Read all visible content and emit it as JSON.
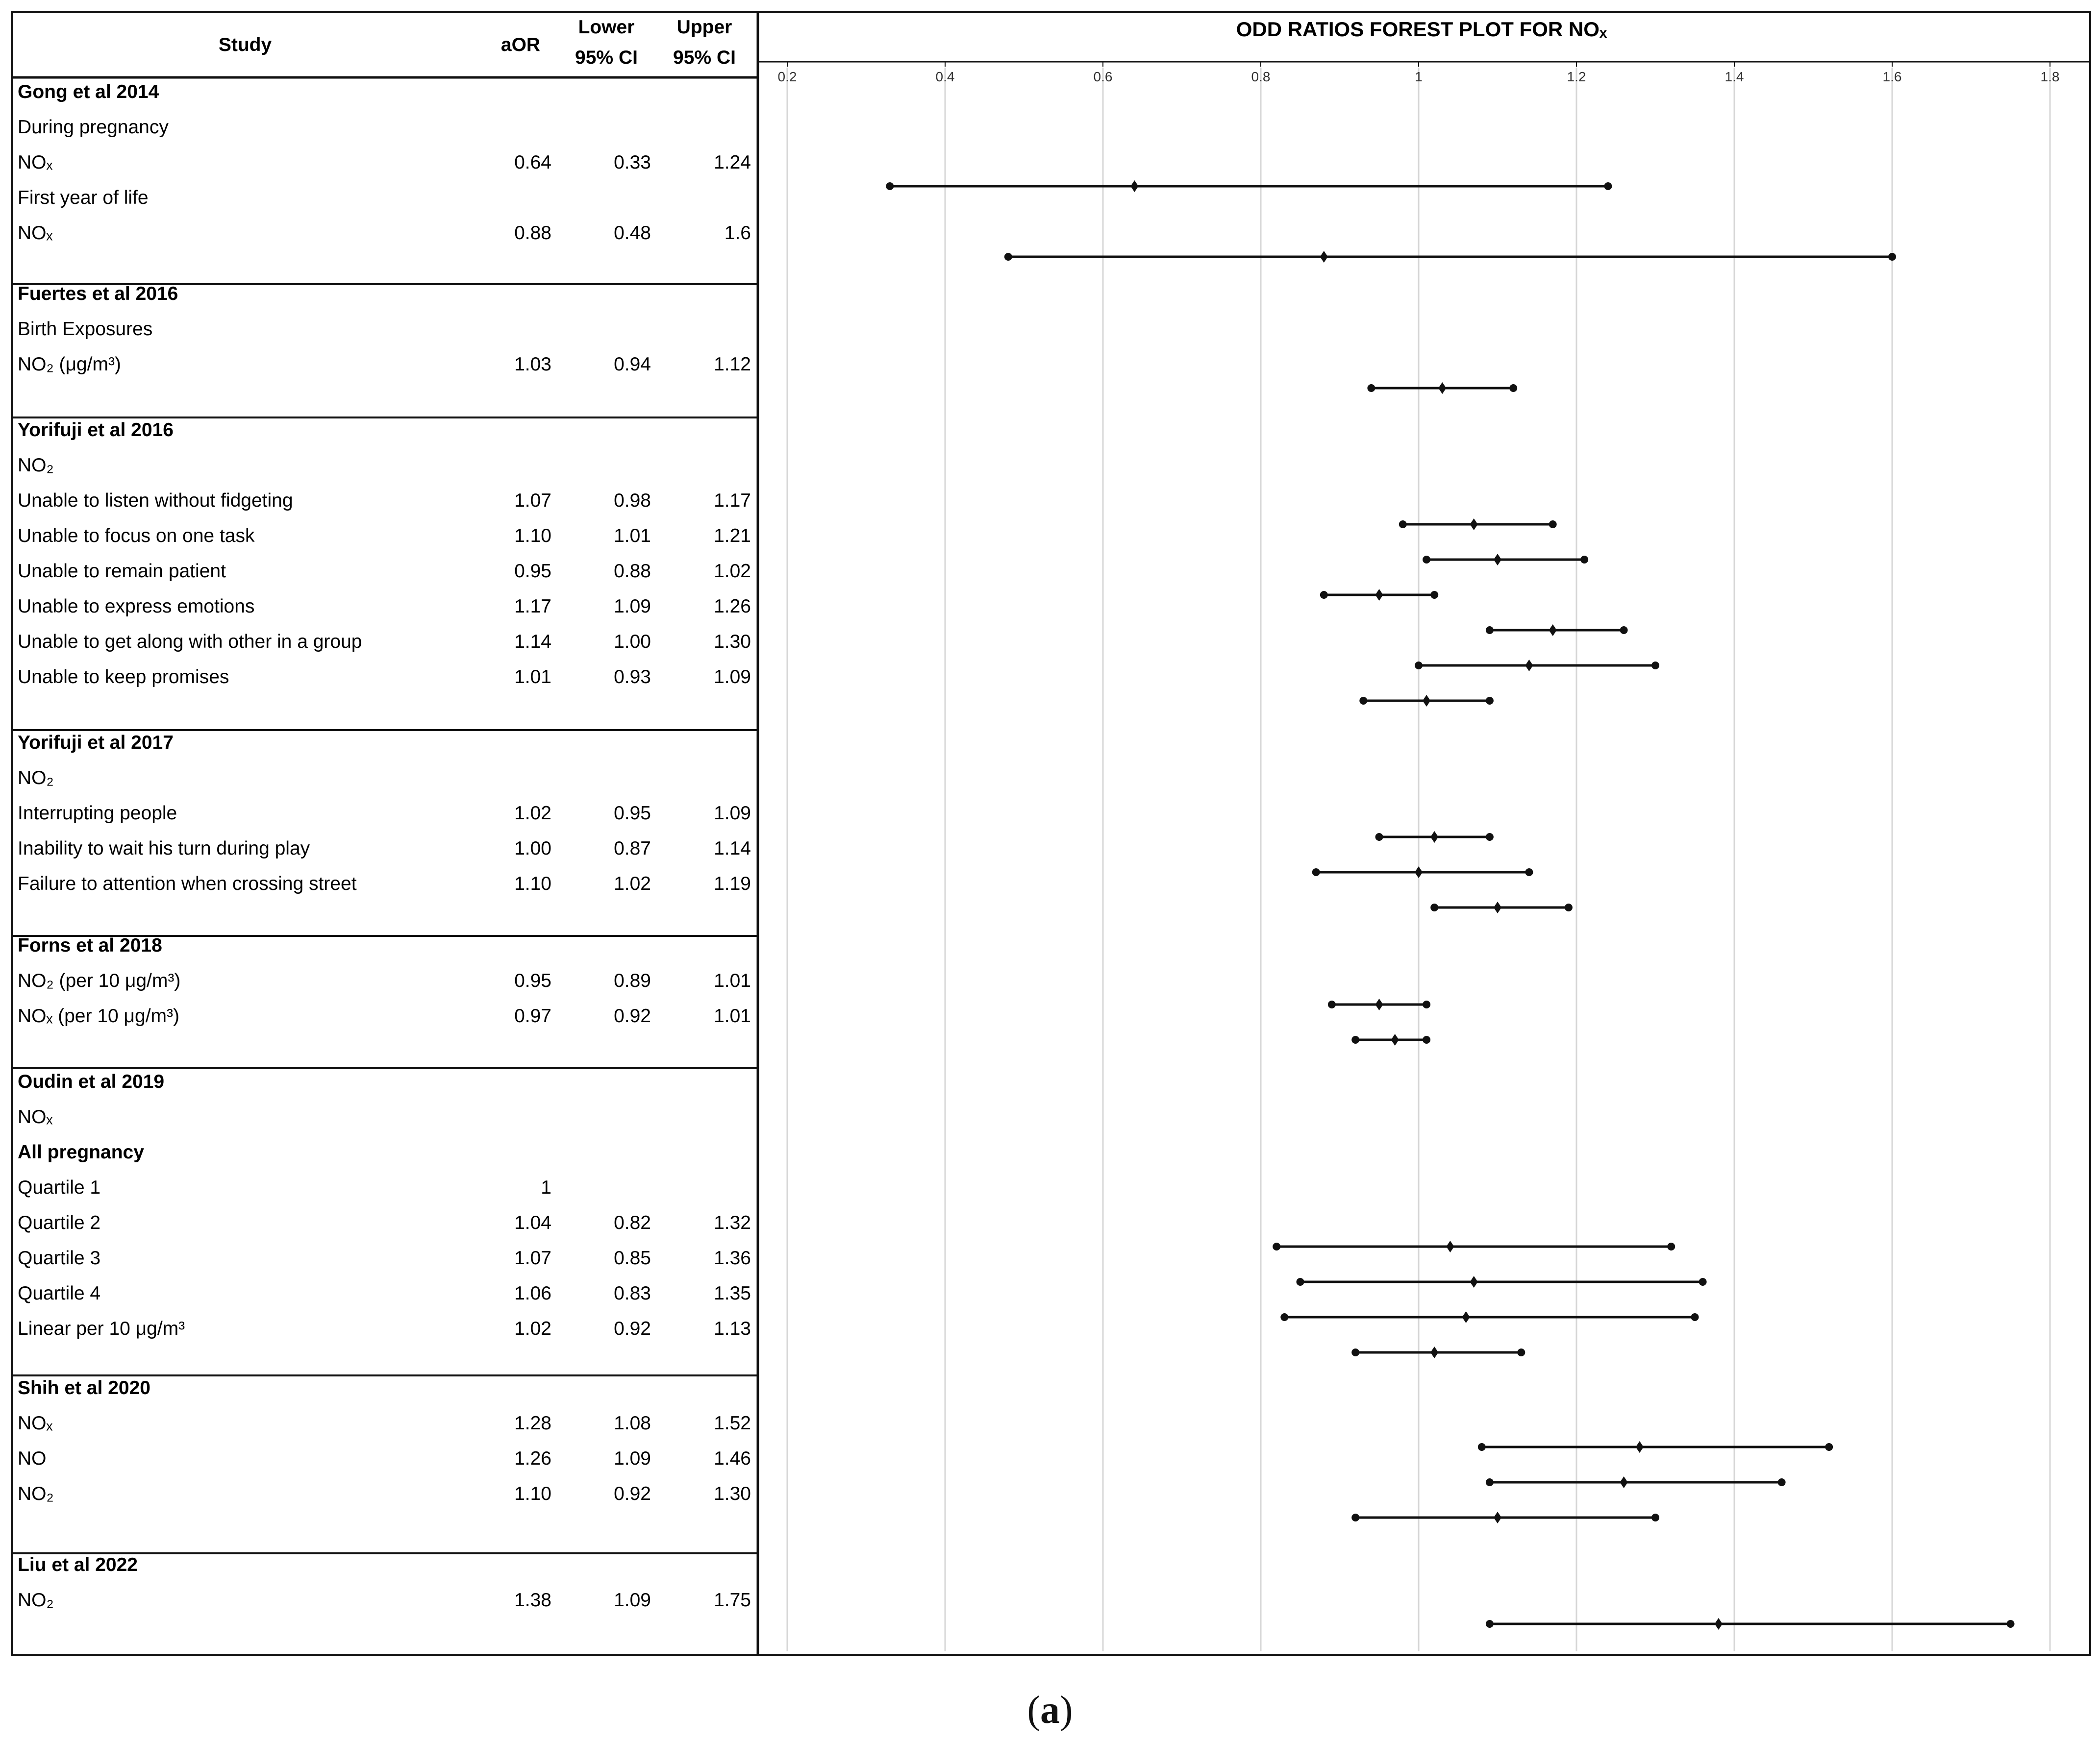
{
  "table": {
    "headers": {
      "study": "Study",
      "aor": "aOR",
      "lower": [
        "Lower",
        "95% CI"
      ],
      "upper": [
        "Upper",
        "95% CI"
      ]
    },
    "groups": [
      {
        "title": "Gong et al 2014",
        "rows": [
          {
            "label": "During pregnancy"
          },
          {
            "label": "NOₓ",
            "aor": "0.64",
            "lower": "0.33",
            "upper": "1.24"
          },
          {
            "label": "First year of life"
          },
          {
            "label": "NOₓ",
            "aor": "0.88",
            "lower": "0.48",
            "upper": "1.6"
          }
        ]
      },
      {
        "title": "Fuertes  et al 2016",
        "rows": [
          {
            "label": "Birth Exposures"
          },
          {
            "label": "NO₂ (μg/m³)",
            "aor": "1.03",
            "lower": "0.94",
            "upper": "1.12"
          }
        ]
      },
      {
        "title": "Yorifuji et al 2016",
        "rows": [
          {
            "label": "NO₂"
          },
          {
            "label": "Unable to listen without fidgeting",
            "aor": "1.07",
            "lower": "0.98",
            "upper": "1.17"
          },
          {
            "label": "Unable to focus on one task",
            "aor": "1.10",
            "lower": "1.01",
            "upper": "1.21"
          },
          {
            "label": "Unable to remain patient",
            "aor": "0.95",
            "lower": "0.88",
            "upper": "1.02"
          },
          {
            "label": "Unable to express emotions",
            "aor": "1.17",
            "lower": "1.09",
            "upper": "1.26"
          },
          {
            "label": "Unable to get along with other in a group",
            "aor": "1.14",
            "lower": "1.00",
            "upper": "1.30"
          },
          {
            "label": "Unable to keep promises",
            "aor": "1.01",
            "lower": "0.93",
            "upper": "1.09"
          }
        ]
      },
      {
        "title": "Yorifuji et al 2017",
        "rows": [
          {
            "label": "NO₂"
          },
          {
            "label": "Interrupting people",
            "aor": "1.02",
            "lower": "0.95",
            "upper": "1.09"
          },
          {
            "label": "Inability to wait his turn during play",
            "aor": "1.00",
            "lower": "0.87",
            "upper": "1.14"
          },
          {
            "label": "Failure to attention when crossing street",
            "aor": "1.10",
            "lower": "1.02",
            "upper": "1.19"
          }
        ]
      },
      {
        "title": "Forns et al 2018",
        "rows": [
          {
            "label": "NO₂ (per 10 μg/m³)",
            "aor": "0.95",
            "lower": "0.89",
            "upper": "1.01"
          },
          {
            "label": "NOₓ (per 10 μg/m³)",
            "aor": "0.97",
            "lower": "0.92",
            "upper": "1.01"
          }
        ]
      },
      {
        "title": "Oudin  et al 2019",
        "rows": [
          {
            "label": "NOₓ"
          },
          {
            "label": "All pregnancy",
            "bold": true
          },
          {
            "label": "Quartile 1",
            "aor": "1"
          },
          {
            "label": "Quartile 2",
            "aor": "1.04",
            "lower": "0.82",
            "upper": "1.32"
          },
          {
            "label": "Quartile 3",
            "aor": "1.07",
            "lower": "0.85",
            "upper": "1.36"
          },
          {
            "label": "Quartile 4",
            "aor": "1.06",
            "lower": "0.83",
            "upper": "1.35"
          },
          {
            "label": "Linear per 10 μg/m³",
            "aor": "1.02",
            "lower": "0.92",
            "upper": "1.13"
          }
        ]
      },
      {
        "title": "Shih et al 2020",
        "rows": [
          {
            "label": "NOₓ",
            "aor": "1.28",
            "lower": "1.08",
            "upper": "1.52"
          },
          {
            "label": "NO",
            "aor": "1.26",
            "lower": "1.09",
            "upper": "1.46"
          },
          {
            "label": "NO₂",
            "aor": "1.10",
            "lower": "0.92",
            "upper": "1.30"
          }
        ]
      },
      {
        "title": "Liu et al 2022",
        "rows": [
          {
            "label": "NO₂",
            "aor": "1.38",
            "lower": "1.09",
            "upper": "1.75"
          }
        ]
      }
    ]
  },
  "chart_data": {
    "type": "forest",
    "title": "ODD RATIOS FOREST PLOT FOR NOₓ",
    "xlim": [
      0.2,
      1.8
    ],
    "xticks": [
      "0.2",
      "0.4",
      "0.6",
      "0.8",
      "1",
      "1.2",
      "1.4",
      "1.6",
      "1.8"
    ],
    "grid": true,
    "estimates": [
      {
        "aor": 0.64,
        "lower": 0.33,
        "upper": 1.24
      },
      {
        "aor": 0.88,
        "lower": 0.48,
        "upper": 1.6
      },
      {
        "aor": 1.03,
        "lower": 0.94,
        "upper": 1.12
      },
      {
        "aor": 1.07,
        "lower": 0.98,
        "upper": 1.17
      },
      {
        "aor": 1.1,
        "lower": 1.01,
        "upper": 1.21
      },
      {
        "aor": 0.95,
        "lower": 0.88,
        "upper": 1.02
      },
      {
        "aor": 1.17,
        "lower": 1.09,
        "upper": 1.26
      },
      {
        "aor": 1.14,
        "lower": 1.0,
        "upper": 1.3
      },
      {
        "aor": 1.01,
        "lower": 0.93,
        "upper": 1.09
      },
      {
        "aor": 1.02,
        "lower": 0.95,
        "upper": 1.09
      },
      {
        "aor": 1.0,
        "lower": 0.87,
        "upper": 1.14
      },
      {
        "aor": 1.1,
        "lower": 1.02,
        "upper": 1.19
      },
      {
        "aor": 0.95,
        "lower": 0.89,
        "upper": 1.01
      },
      {
        "aor": 0.97,
        "lower": 0.92,
        "upper": 1.01
      },
      {
        "aor": 1.04,
        "lower": 0.82,
        "upper": 1.32
      },
      {
        "aor": 1.07,
        "lower": 0.85,
        "upper": 1.36
      },
      {
        "aor": 1.06,
        "lower": 0.83,
        "upper": 1.35
      },
      {
        "aor": 1.02,
        "lower": 0.92,
        "upper": 1.13
      },
      {
        "aor": 1.28,
        "lower": 1.08,
        "upper": 1.52
      },
      {
        "aor": 1.26,
        "lower": 1.09,
        "upper": 1.46
      },
      {
        "aor": 1.1,
        "lower": 0.92,
        "upper": 1.3
      },
      {
        "aor": 1.38,
        "lower": 1.09,
        "upper": 1.75
      }
    ]
  },
  "caption": {
    "open": "(",
    "letter": "a",
    "close": ")"
  }
}
